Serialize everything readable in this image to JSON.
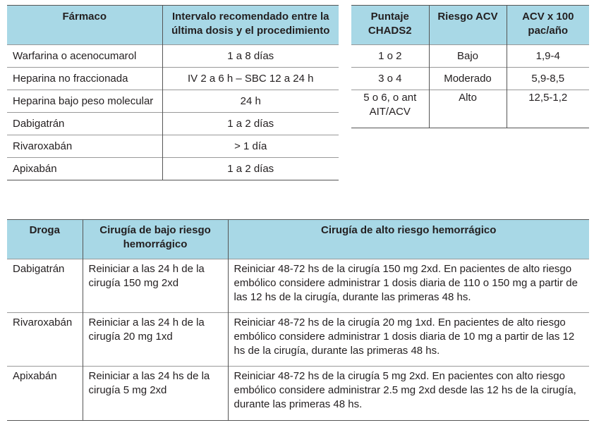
{
  "farmaco_table": {
    "headers": [
      "Fármaco",
      "Intervalo recomendado entre la última dosis y el procedimiento"
    ],
    "rows": [
      [
        "Warfarina o acenocumarol",
        "1 a 8 días"
      ],
      [
        "Heparina no fraccionada",
        "IV 2 a 6 h – SBC 12 a 24 h"
      ],
      [
        "Heparina bajo peso molecular",
        "24 h"
      ],
      [
        "Dabigatrán",
        "1 a 2 días"
      ],
      [
        "Rivaroxabán",
        "> 1 día"
      ],
      [
        "Apixabán",
        "1 a 2 días"
      ]
    ]
  },
  "chads_table": {
    "headers": [
      "Puntaje CHADS2",
      "Riesgo ACV",
      "ACV x 100 pac/año"
    ],
    "rows": [
      [
        "1 o 2",
        "Bajo",
        "1,9-4"
      ],
      [
        "3 o 4",
        "Moderado",
        "5,9-8,5"
      ],
      [
        "5 o 6, o ant AIT/ACV",
        "Alto",
        "12,5-1,2"
      ]
    ]
  },
  "droga_table": {
    "headers": [
      "Droga",
      "Cirugía de bajo riesgo hemorrágico",
      "Cirugía de alto riesgo hemorrágico"
    ],
    "rows": [
      [
        "Dabigatrán",
        "Reiniciar a las 24 h de la cirugía 150 mg 2xd",
        "Reiniciar 48-72 hs de la cirugía 150 mg 2xd. En pacientes de alto riesgo embólico considere administrar 1 dosis diaria de 110 o 150 mg a partir de las 12 hs de la cirugía, durante las primeras 48 hs."
      ],
      [
        "Rivaroxabán",
        "Reiniciar a las 24 h de la cirugía 20 mg 1xd",
        "Reiniciar 48-72 hs de la cirugía 20 mg 1xd. En pacientes de alto riesgo embólico considere administrar 1 dosis diaria de 10 mg a partir de las 12 hs de la cirugía, durante las primeras 48 hs."
      ],
      [
        "Apixabán",
        "Reiniciar a las 24 hs de la cirugía 5 mg 2xd",
        "Reiniciar 48-72 hs de la cirugía 5 mg 2xd. En pacientes con alto riesgo embólico considere administrar 2.5 mg 2xd desde las 12 hs de la cirugía, durante las primeras 48 hs."
      ]
    ]
  },
  "colors": {
    "header_bg": "#a8d8e6",
    "text": "#231f20"
  }
}
